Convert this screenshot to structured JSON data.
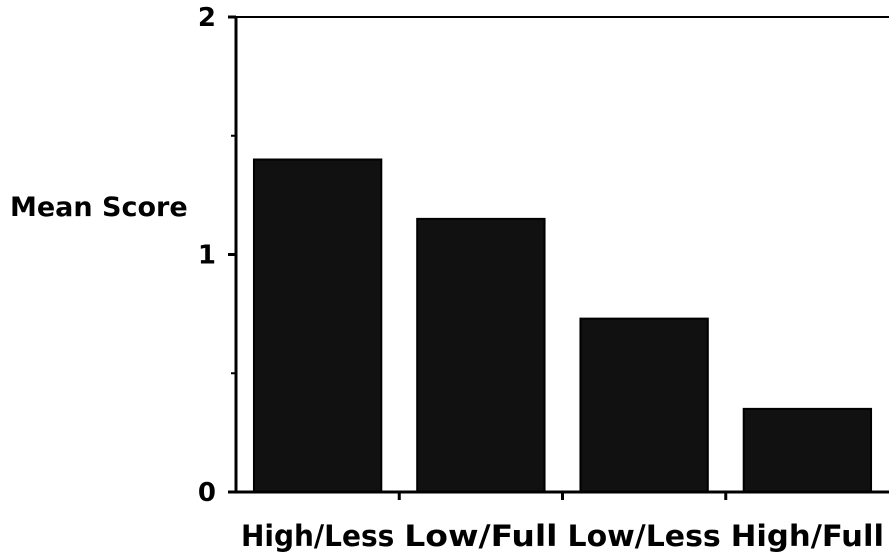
{
  "chart_data": {
    "type": "bar",
    "title": "",
    "xlabel": "",
    "ylabel": "Mean Score",
    "categories": [
      "High/Less",
      "Low/Full",
      "Low/Less",
      "High/Full"
    ],
    "series": [
      {
        "values": [
          1.4,
          1.15,
          0.73,
          0.35
        ]
      }
    ],
    "ylim": [
      0,
      2
    ],
    "yticks": [
      "0",
      "1",
      "2"
    ],
    "grid": false,
    "legend": "none",
    "bar_color": "#111111"
  }
}
